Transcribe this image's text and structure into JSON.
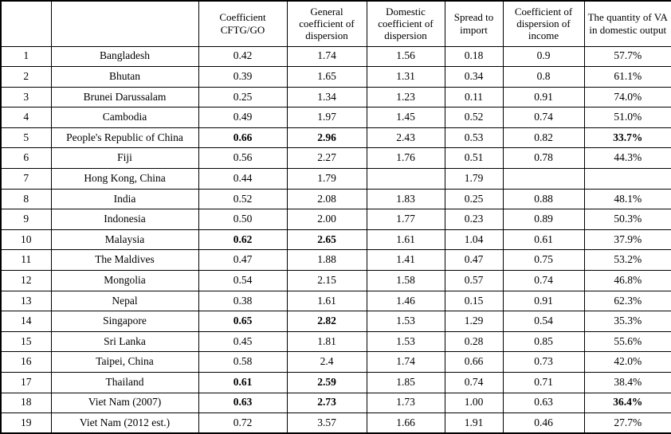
{
  "chart_data": {
    "type": "table",
    "columns": [
      "",
      "",
      "Coefficient CFTG/GO",
      "General coefficient of dispersion",
      "Domestic coefficient of dispersion",
      "Spread to import",
      "Coefficient of dispersion of income",
      "The quantity of VA in domestic output"
    ],
    "rows": [
      {
        "num": "1",
        "country": "Bangladesh",
        "values": [
          "0.42",
          "1.74",
          "1.56",
          "0.18",
          "0.9",
          "57.7%"
        ],
        "bold": []
      },
      {
        "num": "2",
        "country": "Bhutan",
        "values": [
          "0.39",
          "1.65",
          "1.31",
          "0.34",
          "0.8",
          "61.1%"
        ],
        "bold": []
      },
      {
        "num": "3",
        "country": "Brunei Darussalam",
        "values": [
          "0.25",
          "1.34",
          "1.23",
          "0.11",
          "0.91",
          "74.0%"
        ],
        "bold": []
      },
      {
        "num": "4",
        "country": "Cambodia",
        "values": [
          "0.49",
          "1.97",
          "1.45",
          "0.52",
          "0.74",
          "51.0%"
        ],
        "bold": []
      },
      {
        "num": "5",
        "country": "People's Republic of China",
        "values": [
          "0.66",
          "2.96",
          "2.43",
          "0.53",
          "0.82",
          "33.7%"
        ],
        "bold": [
          0,
          1,
          5
        ]
      },
      {
        "num": "6",
        "country": "Fiji",
        "values": [
          "0.56",
          "2.27",
          "1.76",
          "0.51",
          "0.78",
          "44.3%"
        ],
        "bold": []
      },
      {
        "num": "7",
        "country": "Hong Kong, China",
        "values": [
          "0.44",
          "1.79",
          "",
          "1.79",
          "",
          ""
        ],
        "bold": []
      },
      {
        "num": "8",
        "country": "India",
        "values": [
          "0.52",
          "2.08",
          "1.83",
          "0.25",
          "0.88",
          "48.1%"
        ],
        "bold": []
      },
      {
        "num": "9",
        "country": "Indonesia",
        "values": [
          "0.50",
          "2.00",
          "1.77",
          "0.23",
          "0.89",
          "50.3%"
        ],
        "bold": []
      },
      {
        "num": "10",
        "country": "Malaysia",
        "values": [
          "0.62",
          "2.65",
          "1.61",
          "1.04",
          "0.61",
          "37.9%"
        ],
        "bold": [
          0,
          1
        ]
      },
      {
        "num": "11",
        "country": "The Maldives",
        "values": [
          "0.47",
          "1.88",
          "1.41",
          "0.47",
          "0.75",
          "53.2%"
        ],
        "bold": []
      },
      {
        "num": "12",
        "country": "Mongolia",
        "values": [
          "0.54",
          "2.15",
          "1.58",
          "0.57",
          "0.74",
          "46.8%"
        ],
        "bold": []
      },
      {
        "num": "13",
        "country": "Nepal",
        "values": [
          "0.38",
          "1.61",
          "1.46",
          "0.15",
          "0.91",
          "62.3%"
        ],
        "bold": []
      },
      {
        "num": "14",
        "country": "Singapore",
        "values": [
          "0.65",
          "2.82",
          "1.53",
          "1.29",
          "0.54",
          "35.3%"
        ],
        "bold": [
          0,
          1
        ]
      },
      {
        "num": "15",
        "country": "Sri Lanka",
        "values": [
          "0.45",
          "1.81",
          "1.53",
          "0.28",
          "0.85",
          "55.6%"
        ],
        "bold": []
      },
      {
        "num": "16",
        "country": "Taipei, China",
        "values": [
          "0.58",
          "2.4",
          "1.74",
          "0.66",
          "0.73",
          "42.0%"
        ],
        "bold": []
      },
      {
        "num": "17",
        "country": "Thailand",
        "values": [
          "0.61",
          "2.59",
          "1.85",
          "0.74",
          "0.71",
          "38.4%"
        ],
        "bold": [
          0,
          1
        ]
      },
      {
        "num": "18",
        "country": "Viet Nam (2007)",
        "values": [
          "0.63",
          "2.73",
          "1.73",
          "1.00",
          "0.63",
          "36.4%"
        ],
        "bold": [
          0,
          1,
          5
        ]
      },
      {
        "num": "19",
        "country": "Viet Nam (2012 est.)",
        "values": [
          "0.72",
          "3.57",
          "1.66",
          "1.91",
          "0.46",
          "27.7%"
        ],
        "bold": []
      }
    ],
    "layout": {
      "grid": true,
      "header_rows": 1,
      "border_color": "#000000",
      "text_color": "#000000",
      "background_color": "#ffffff"
    }
  }
}
